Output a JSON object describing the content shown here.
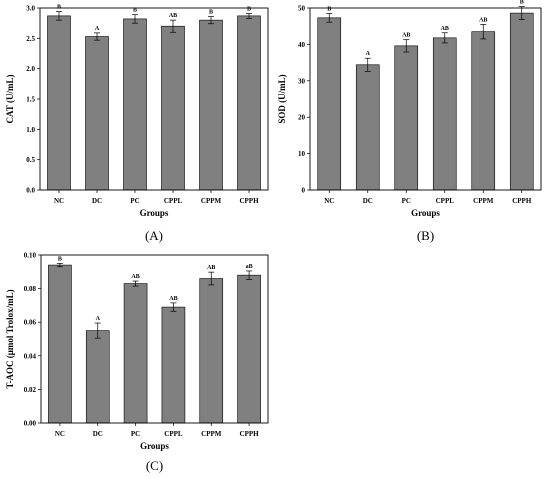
{
  "chart_data": [
    {
      "type": "bar",
      "panel_label": "(A)",
      "categories": [
        "NC",
        "DC",
        "PC",
        "CPPL",
        "CPPM",
        "CPPH"
      ],
      "values": [
        2.87,
        2.53,
        2.82,
        2.7,
        2.8,
        2.87
      ],
      "errors": [
        0.07,
        0.06,
        0.07,
        0.1,
        0.06,
        0.04
      ],
      "significance": [
        "B",
        "A",
        "B",
        "AB",
        "B",
        "B"
      ],
      "xlabel": "Groups",
      "ylabel": "CAT (U/mL)",
      "ylim": [
        0,
        3.0
      ],
      "yticks": [
        0.0,
        0.5,
        1.0,
        1.5,
        2.0,
        2.5,
        3.0
      ],
      "ytick_labels": [
        "0.0",
        "0.5",
        "1.0",
        "1.5",
        "2.0",
        "2.5",
        "3.0"
      ],
      "bar_color": "#808080"
    },
    {
      "type": "bar",
      "panel_label": "(B)",
      "categories": [
        "NC",
        "DC",
        "PC",
        "CPPL",
        "CPPM",
        "CPPH"
      ],
      "values": [
        47.3,
        34.4,
        39.6,
        41.8,
        43.5,
        48.6
      ],
      "errors": [
        1.2,
        1.8,
        1.7,
        1.4,
        2.0,
        1.8
      ],
      "significance": [
        "B",
        "A",
        "AB",
        "AB",
        "AB",
        "B"
      ],
      "xlabel": "Groups",
      "ylabel": "SOD (U/mL)",
      "ylim": [
        0,
        50
      ],
      "yticks": [
        0,
        10,
        20,
        30,
        40,
        50
      ],
      "ytick_labels": [
        "0",
        "10",
        "20",
        "30",
        "40",
        "50"
      ],
      "bar_color": "#808080"
    },
    {
      "type": "bar",
      "panel_label": "(C)",
      "categories": [
        "NC",
        "DC",
        "PC",
        "CPPL",
        "CPPM",
        "CPPH"
      ],
      "values": [
        0.094,
        0.055,
        0.083,
        0.069,
        0.086,
        0.088
      ],
      "errors": [
        0.001,
        0.0045,
        0.0015,
        0.0025,
        0.0038,
        0.0025
      ],
      "significance": [
        "B",
        "A",
        "AB",
        "AB",
        "AB",
        "aB"
      ],
      "xlabel": "Groups",
      "ylabel": "T-AOC (μmol Trolox/mL)",
      "ylim": [
        0,
        0.1
      ],
      "yticks": [
        0.0,
        0.02,
        0.04,
        0.06,
        0.08,
        0.1
      ],
      "ytick_labels": [
        "0.00",
        "0.02",
        "0.04",
        "0.06",
        "0.08",
        "0.10"
      ],
      "bar_color": "#808080"
    }
  ]
}
